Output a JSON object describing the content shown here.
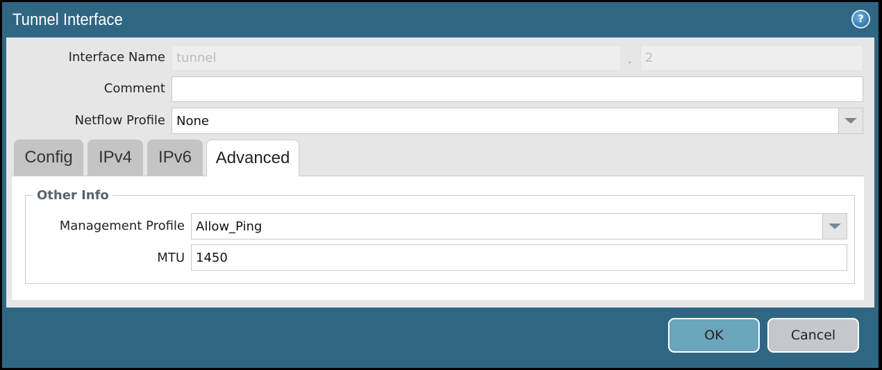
{
  "dialog": {
    "title": "Tunnel Interface",
    "help_icon": "question-circle-icon"
  },
  "fields": {
    "interface_name_label": "Interface Name",
    "interface_name_value": "tunnel",
    "separator": ".",
    "interface_suffix": "2",
    "comment_label": "Comment",
    "comment_value": "",
    "netflow_label": "Netflow Profile",
    "netflow_value": "None"
  },
  "tabs": [
    {
      "label": "Config"
    },
    {
      "label": "IPv4"
    },
    {
      "label": "IPv6"
    },
    {
      "label": "Advanced",
      "active": true
    }
  ],
  "advanced": {
    "section_title": "Other Info",
    "mgmt_profile_label": "Management Profile",
    "mgmt_profile_value": "Allow_Ping",
    "mtu_label": "MTU",
    "mtu_value": "1450"
  },
  "buttons": {
    "ok": "OK",
    "cancel": "Cancel"
  },
  "colors": {
    "titlebar": "#2f6684",
    "ok_button": "#6aa5bb",
    "cancel_button": "#c4c8cc"
  }
}
